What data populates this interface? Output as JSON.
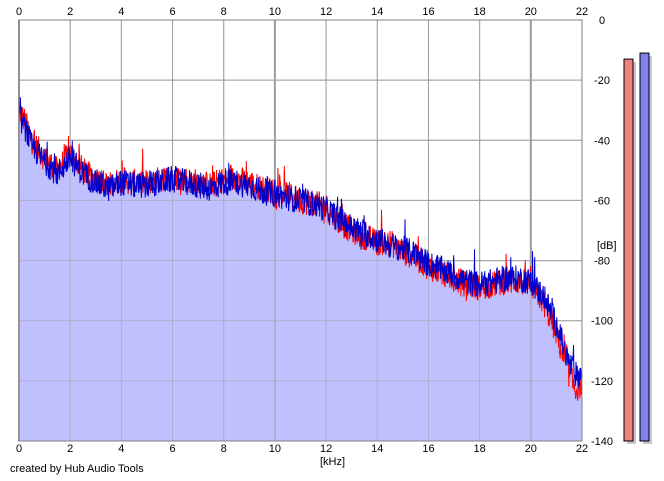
{
  "credit": "created by Hub Audio Tools",
  "chart_data": {
    "type": "line",
    "title": "",
    "xlabel": "[kHz]",
    "ylabel": "[dB]",
    "xlim": [
      0,
      22
    ],
    "ylim": [
      -140,
      0
    ],
    "xticks": [
      0,
      2,
      4,
      6,
      8,
      10,
      12,
      14,
      16,
      18,
      20,
      22
    ],
    "yticks": [
      0,
      -20,
      -40,
      -60,
      -80,
      -100,
      -120,
      -140
    ],
    "grid": true,
    "fill_under": true,
    "colors": {
      "fill": "#c0c0ff",
      "left_channel": "#ff0000",
      "right_channel": "#0000cc",
      "grid": "#a0a0a0",
      "meter_left": "#f08080",
      "meter_right": "#8080f0"
    },
    "series": [
      {
        "channel": "left",
        "x": [
          0,
          0.25,
          0.5,
          1,
          1.5,
          2,
          2.5,
          3,
          3.5,
          4,
          4.5,
          5,
          5.5,
          6,
          6.5,
          7,
          7.5,
          8,
          8.5,
          9,
          9.5,
          10,
          10.5,
          11,
          11.5,
          12,
          12.5,
          13,
          13.5,
          14,
          14.5,
          15,
          15.5,
          16,
          16.5,
          17,
          17.5,
          18,
          18.5,
          19,
          19.5,
          20,
          20.5,
          21,
          21.25,
          21.5,
          21.75,
          22
        ],
        "values": [
          -30,
          -34,
          -40,
          -46,
          -50,
          -44,
          -50,
          -53,
          -55,
          -53,
          -54,
          -54,
          -53,
          -52,
          -53,
          -54,
          -55,
          -53,
          -53,
          -54,
          -56,
          -57,
          -58,
          -60,
          -61,
          -62,
          -67,
          -70,
          -72,
          -74,
          -74,
          -77,
          -79,
          -82,
          -84,
          -86,
          -88,
          -89,
          -88,
          -87,
          -87,
          -88,
          -94,
          -104,
          -112,
          -118,
          -123,
          -121
        ]
      },
      {
        "channel": "right",
        "x": [
          0,
          0.25,
          0.5,
          1,
          1.5,
          2,
          2.5,
          3,
          3.5,
          4,
          4.5,
          5,
          5.5,
          6,
          6.5,
          7,
          7.5,
          8,
          8.5,
          9,
          9.5,
          10,
          10.5,
          11,
          11.5,
          12,
          12.5,
          13,
          13.5,
          14,
          14.5,
          15,
          15.5,
          16,
          16.5,
          17,
          17.5,
          18,
          18.5,
          19,
          19.5,
          20,
          20.5,
          21,
          21.25,
          21.5,
          21.75,
          22
        ],
        "values": [
          -32,
          -36,
          -42,
          -47,
          -51,
          -46,
          -51,
          -54,
          -56,
          -54,
          -55,
          -55,
          -54,
          -53,
          -54,
          -55,
          -56,
          -54,
          -54,
          -55,
          -57,
          -58,
          -59,
          -60,
          -61,
          -63,
          -66,
          -69,
          -71,
          -73,
          -75,
          -76,
          -78,
          -81,
          -83,
          -85,
          -87,
          -88,
          -87,
          -86,
          -86,
          -87,
          -92,
          -101,
          -108,
          -114,
          -118,
          -118
        ]
      }
    ],
    "level_meters": [
      {
        "channel": "left",
        "value_db": -13
      },
      {
        "channel": "right",
        "value_db": -11
      }
    ]
  }
}
